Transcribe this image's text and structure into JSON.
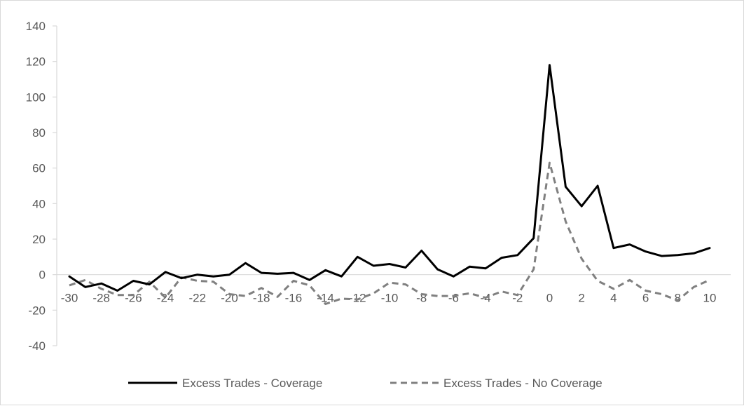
{
  "chart_data": {
    "type": "line",
    "title": "",
    "xlabel": "",
    "ylabel": "",
    "ylim": [
      -40,
      140
    ],
    "yticks": [
      -40,
      -20,
      0,
      20,
      40,
      60,
      80,
      100,
      120,
      140
    ],
    "xlim": [
      -30,
      10
    ],
    "xticks": [
      -30,
      -28,
      -26,
      -24,
      -22,
      -20,
      -18,
      -16,
      -14,
      -12,
      -10,
      -8,
      -6,
      -4,
      -2,
      0,
      2,
      4,
      6,
      8,
      10
    ],
    "grid": false,
    "legend_position": "bottom",
    "x": [
      -30,
      -29,
      -28,
      -27,
      -26,
      -25,
      -24,
      -23,
      -22,
      -21,
      -20,
      -19,
      -18,
      -17,
      -16,
      -15,
      -14,
      -13,
      -12,
      -11,
      -10,
      -9,
      -8,
      -7,
      -6,
      -5,
      -4,
      -3,
      -2,
      -1,
      0,
      1,
      2,
      3,
      4,
      5,
      6,
      7,
      8,
      9,
      10
    ],
    "series": [
      {
        "name": "Excess Trades - Coverage",
        "color": "#000000",
        "dash": "solid",
        "values": [
          -1,
          -7,
          -5,
          -9,
          -3.5,
          -5.5,
          1.5,
          -2,
          0,
          -1,
          0,
          6.5,
          1,
          0.5,
          1,
          -3,
          2.5,
          -1,
          10,
          5,
          6,
          4,
          13.5,
          3,
          -1,
          4.5,
          3.5,
          9.5,
          11,
          20.5,
          118,
          49.5,
          38.5,
          50,
          15,
          17,
          13,
          10.5,
          11,
          12,
          15
        ]
      },
      {
        "name": "Excess Trades - No Coverage",
        "color": "#808080",
        "dash": "dashed",
        "values": [
          -6,
          -3,
          -8,
          -11.5,
          -11.5,
          -4,
          -13,
          -1.5,
          -3.5,
          -4,
          -11,
          -12,
          -7.5,
          -12.5,
          -3.5,
          -6,
          -16.5,
          -13.5,
          -14,
          -10.5,
          -4.5,
          -5.5,
          -11,
          -12,
          -12,
          -10.5,
          -13,
          -9.5,
          -11.5,
          3,
          63,
          30,
          9,
          -3.5,
          -8,
          -3,
          -9,
          -11,
          -14.5,
          -7,
          -3
        ]
      }
    ]
  }
}
